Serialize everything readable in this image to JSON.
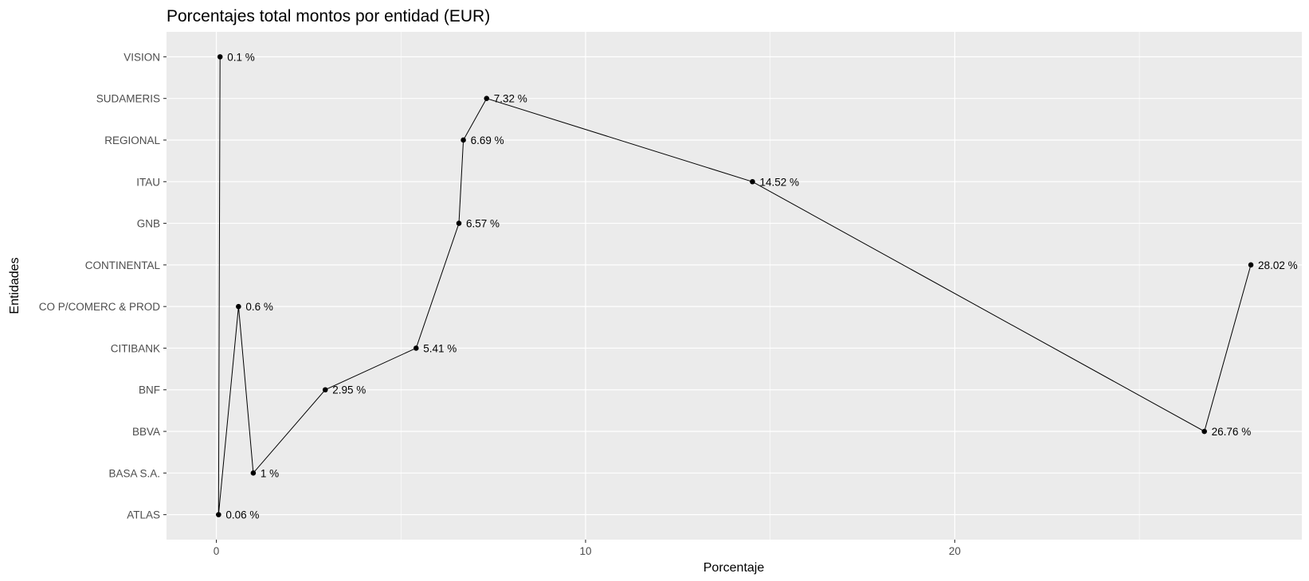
{
  "chart_data": {
    "type": "line",
    "title": "Porcentajes total montos por entidad (EUR)",
    "xlabel": "Porcentaje",
    "ylabel": "Entidades",
    "xlim": [
      -1.35,
      29.4
    ],
    "x_ticks": [
      0,
      10,
      20
    ],
    "x_minor_ticks": [
      5,
      15,
      25
    ],
    "categories": [
      "ATLAS",
      "BASA S.A.",
      "BBVA",
      "BNF",
      "CITIBANK",
      "CO P/COMERC & PROD",
      "CONTINENTAL",
      "GNB",
      "ITAU",
      "REGIONAL",
      "SUDAMERIS",
      "VISION"
    ],
    "grid": true,
    "legend": "none",
    "series": [
      {
        "points": [
          {
            "entity": "VISION",
            "value": 0.1,
            "label": "0.1 %"
          },
          {
            "entity": "ATLAS",
            "value": 0.06,
            "label": "0.06 %"
          },
          {
            "entity": "CO P/COMERC & PROD",
            "value": 0.6,
            "label": "0.6 %"
          },
          {
            "entity": "BASA S.A.",
            "value": 1.0,
            "label": "1 %"
          },
          {
            "entity": "BNF",
            "value": 2.95,
            "label": "2.95 %"
          },
          {
            "entity": "CITIBANK",
            "value": 5.41,
            "label": "5.41 %"
          },
          {
            "entity": "GNB",
            "value": 6.57,
            "label": "6.57 %"
          },
          {
            "entity": "REGIONAL",
            "value": 6.69,
            "label": "6.69 %"
          },
          {
            "entity": "SUDAMERIS",
            "value": 7.32,
            "label": "7.32 %"
          },
          {
            "entity": "ITAU",
            "value": 14.52,
            "label": "14.52 %"
          },
          {
            "entity": "BBVA",
            "value": 26.76,
            "label": "26.76 %"
          },
          {
            "entity": "CONTINENTAL",
            "value": 28.02,
            "label": "28.02 %"
          }
        ]
      }
    ],
    "colors": {
      "panel": "#ebebeb",
      "grid": "#ffffff",
      "line": "#000000",
      "point": "#000000",
      "tick_text": "#4d4d4d",
      "tick_mark": "#333333"
    }
  }
}
